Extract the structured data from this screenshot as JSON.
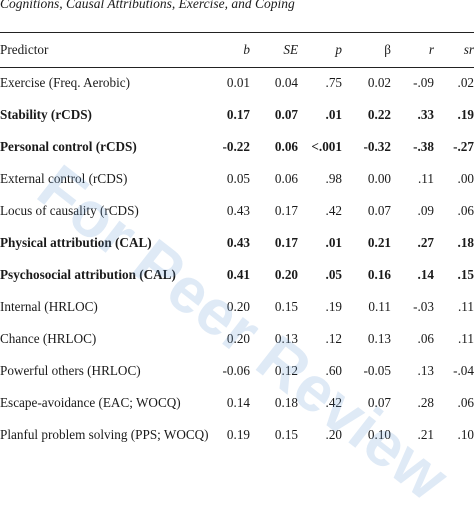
{
  "caption": "Cognitions, Causal Attributions, Exercise, and Coping",
  "watermark": "For Peer Review",
  "columns": {
    "predictor": "Predictor",
    "b": "b",
    "se": "SE",
    "p": "p",
    "beta": "β",
    "r": "r",
    "sr": "sr"
  },
  "rows": [
    {
      "predictor": "Exercise (Freq. Aerobic)",
      "b": "0.01",
      "se": "0.04",
      "p": ".75",
      "beta": "0.02",
      "r": "-.09",
      "sr": ".02",
      "bold": false
    },
    {
      "predictor": "Stability (rCDS)",
      "b": "0.17",
      "se": "0.07",
      "p": ".01",
      "beta": "0.22",
      "r": ".33",
      "sr": ".19",
      "bold": true
    },
    {
      "predictor": "Personal control (rCDS)",
      "b": "-0.22",
      "se": "0.06",
      "p": "<.001",
      "beta": "-0.32",
      "r": "-.38",
      "sr": "-.27",
      "bold": true
    },
    {
      "predictor": "External control (rCDS)",
      "b": "0.05",
      "se": "0.06",
      "p": ".98",
      "beta": "0.00",
      "r": ".11",
      "sr": ".00",
      "bold": false
    },
    {
      "predictor": "Locus of causality (rCDS)",
      "b": "0.43",
      "se": "0.17",
      "p": ".42",
      "beta": "0.07",
      "r": ".09",
      "sr": ".06",
      "bold": false
    },
    {
      "predictor": "Physical attribution (CAL)",
      "b": "0.43",
      "se": "0.17",
      "p": ".01",
      "beta": "0.21",
      "r": ".27",
      "sr": ".18",
      "bold": true
    },
    {
      "predictor": "Psychosocial attribution (CAL)",
      "b": "0.41",
      "se": "0.20",
      "p": ".05",
      "beta": "0.16",
      "r": ".14",
      "sr": ".15",
      "bold": true
    },
    {
      "predictor": "Internal (HRLOC)",
      "b": "0.20",
      "se": "0.15",
      "p": ".19",
      "beta": "0.11",
      "r": "-.03",
      "sr": ".11",
      "bold": false
    },
    {
      "predictor": "Chance (HRLOC)",
      "b": "0.20",
      "se": "0.13",
      "p": ".12",
      "beta": "0.13",
      "r": ".06",
      "sr": ".11",
      "bold": false
    },
    {
      "predictor": "Powerful others (HRLOC)",
      "b": "-0.06",
      "se": "0.12",
      "p": ".60",
      "beta": "-0.05",
      "r": ".13",
      "sr": "-.04",
      "bold": false
    },
    {
      "predictor": "Escape-avoidance (EAC; WOCQ)",
      "b": "0.14",
      "se": "0.18",
      "p": ".42",
      "beta": "0.07",
      "r": ".28",
      "sr": ".06",
      "bold": false
    },
    {
      "predictor": "Planful problem solving (PPS; WOCQ)",
      "b": "0.19",
      "se": "0.15",
      "p": ".20",
      "beta": "0.10",
      "r": ".21",
      "sr": ".10",
      "bold": false
    }
  ]
}
